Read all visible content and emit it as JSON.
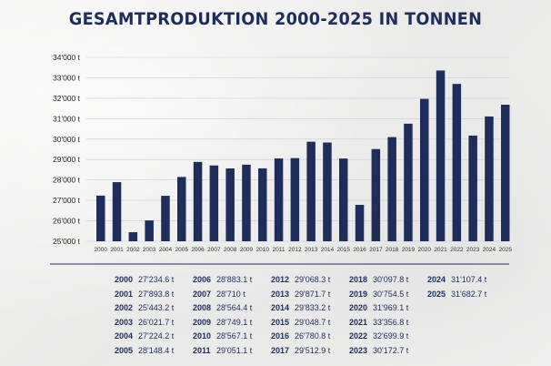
{
  "chart_data": {
    "type": "bar",
    "title": "GESAMTPRODUKTION 2000-2025 IN TONNEN",
    "categories": [
      "2000",
      "2001",
      "2002",
      "2003",
      "2004",
      "2005",
      "2006",
      "2007",
      "2008",
      "2009",
      "2010",
      "2011",
      "2012",
      "2013",
      "2014",
      "2015",
      "2016",
      "2017",
      "2018",
      "2019",
      "2020",
      "2021",
      "2022",
      "2023",
      "2024",
      "2025"
    ],
    "values": [
      27234.6,
      27893.8,
      25443.2,
      26021.7,
      27224.2,
      28148.4,
      28883.1,
      28710,
      28564.4,
      28749.1,
      28567.1,
      29051.1,
      29068.3,
      29871.7,
      29833.2,
      29048.7,
      26780.8,
      29512.9,
      30097.8,
      30754.5,
      31969.1,
      33356.8,
      32699.9,
      30172.7,
      31107.4,
      31682.7
    ],
    "ylim": [
      25000,
      34000
    ],
    "yticks": [
      "25'000 t",
      "26'000 t",
      "27'000 t",
      "28'000 t",
      "29'000 t",
      "30'000 t",
      "31'000 t",
      "32'000 t",
      "33'000 t",
      "34'000 t"
    ],
    "bar_color": "#1f2d5c",
    "grid": true
  },
  "table": [
    {
      "year": "2000",
      "value": "27'234.6 t"
    },
    {
      "year": "2001",
      "value": "27'893.8 t"
    },
    {
      "year": "2002",
      "value": "25'443.2 t"
    },
    {
      "year": "2003",
      "value": "26'021.7 t"
    },
    {
      "year": "2004",
      "value": "27'224.2 t"
    },
    {
      "year": "2005",
      "value": "28'148.4 t"
    },
    {
      "year": "2006",
      "value": "28'883.1 t"
    },
    {
      "year": "2007",
      "value": "28'710 t"
    },
    {
      "year": "2008",
      "value": "28'564.4 t"
    },
    {
      "year": "2009",
      "value": "28'749.1 t"
    },
    {
      "year": "2010",
      "value": "28'567.1 t"
    },
    {
      "year": "2011",
      "value": "29'051.1 t"
    },
    {
      "year": "2012",
      "value": "29'068.3 t"
    },
    {
      "year": "2013",
      "value": "29'871.7 t"
    },
    {
      "year": "2014",
      "value": "29'833.2 t"
    },
    {
      "year": "2015",
      "value": "29'048.7 t"
    },
    {
      "year": "2016",
      "value": "26'780.8 t"
    },
    {
      "year": "2017",
      "value": "29'512.9 t"
    },
    {
      "year": "2018",
      "value": "30'097.8 t"
    },
    {
      "year": "2019",
      "value": "30'754.5 t"
    },
    {
      "year": "2020",
      "value": "31'969.1 t"
    },
    {
      "year": "2021",
      "value": "33'356.8 t"
    },
    {
      "year": "2022",
      "value": "32'699.9 t"
    },
    {
      "year": "2023",
      "value": "30'172.7 t"
    },
    {
      "year": "2024",
      "value": "31'107.4 t"
    },
    {
      "year": "2025",
      "value": "31'682.7 t"
    }
  ]
}
